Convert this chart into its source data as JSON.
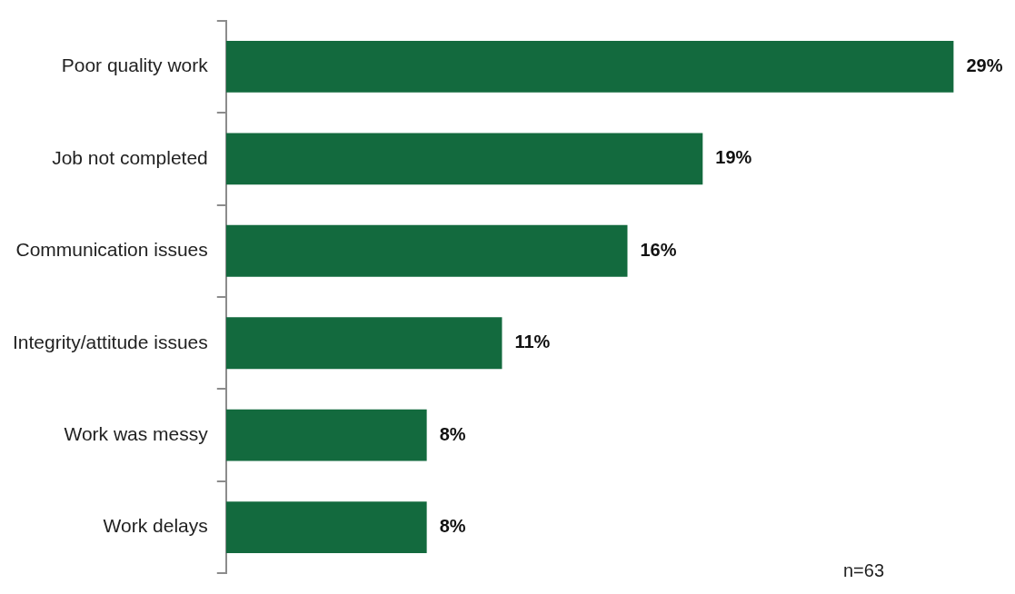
{
  "chart_data": {
    "type": "bar",
    "orientation": "horizontal",
    "categories": [
      "Poor quality work",
      "Job not completed",
      "Communication issues",
      "Integrity/attitude issues",
      "Work was messy",
      "Work delays"
    ],
    "values": [
      29,
      19,
      16,
      11,
      8,
      8
    ],
    "color": "#136a3e",
    "tick_labels": "y",
    "legend": false,
    "data_labels": true,
    "value_labels": [
      "29%",
      "19%",
      "16%",
      "11%",
      "8%",
      "8%"
    ],
    "annotations": [
      "n=63"
    ]
  }
}
